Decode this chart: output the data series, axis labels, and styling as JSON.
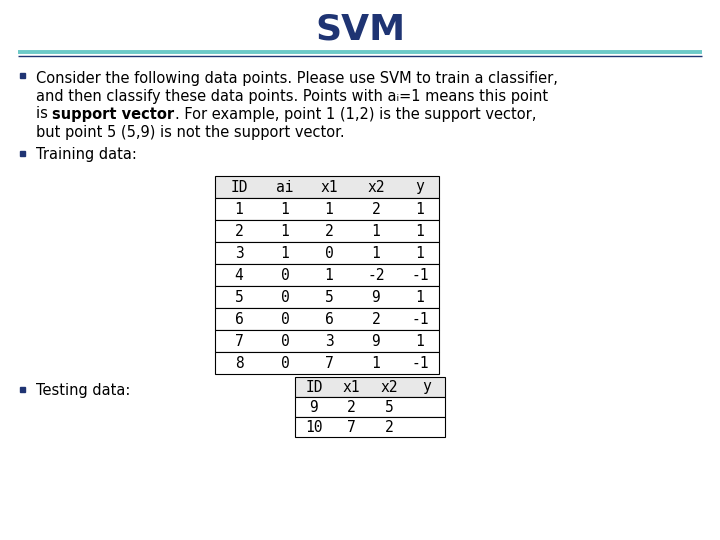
{
  "title": "SVM",
  "title_color": "#1F3473",
  "title_fontsize": 26,
  "separator_color_top": "#6DCAC8",
  "separator_color_bottom": "#1F3473",
  "bullet_color": "#1F3473",
  "line1": "Consider the following data points. Please use SVM to train a classifier,",
  "line2": "and then classify these data points. Points with aᵢ=1 means this point",
  "line3_pre": "is ",
  "line3_bold": "support vector",
  "line3_post": ". For example, point 1 (1,2) is the support vector,",
  "line4": "but point 5 (5,9) is not the support vector.",
  "bullet2": "Training data:",
  "bullet3": "Testing data:",
  "training_headers": [
    "ID",
    "ai",
    "x1",
    "x2",
    "y"
  ],
  "training_data": [
    [
      "1",
      "1",
      "1",
      "2",
      "1"
    ],
    [
      "2",
      "1",
      "2",
      "1",
      "1"
    ],
    [
      "3",
      "1",
      "0",
      "1",
      "1"
    ],
    [
      "4",
      "0",
      "1",
      "-2",
      "-1"
    ],
    [
      "5",
      "0",
      "5",
      "9",
      "1"
    ],
    [
      "6",
      "0",
      "6",
      "2",
      "-1"
    ],
    [
      "7",
      "0",
      "3",
      "9",
      "1"
    ],
    [
      "8",
      "0",
      "7",
      "1",
      "-1"
    ]
  ],
  "testing_headers": [
    "ID",
    "x1",
    "x2",
    "y"
  ],
  "testing_data": [
    [
      "9",
      "2",
      "5",
      ""
    ],
    [
      "10",
      "7",
      "2",
      ""
    ]
  ],
  "bg_color": "#FFFFFF",
  "text_fontsize": 10.5,
  "table_fontsize": 10.5
}
